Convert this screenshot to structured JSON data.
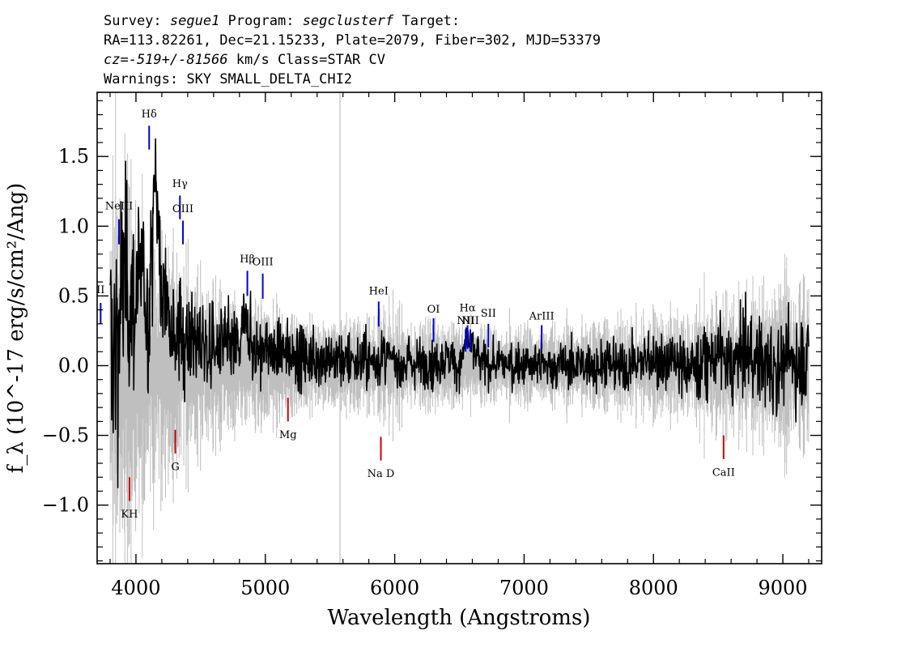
{
  "header": {
    "line1": {
      "survey_label": "Survey: ",
      "survey": "segue1",
      "program_label": " Program: ",
      "program": "segclusterf",
      "target_label": " Target:"
    },
    "line2": "RA=113.82261, Dec=21.15233, Plate=2079, Fiber=302, MJD=53379",
    "line3": {
      "cz": "cz=-519+/-81566",
      "rest": " km/s Class=STAR CV"
    },
    "line4": "Warnings: SKY SMALL_DELTA_CHI2"
  },
  "chart_data": {
    "type": "line",
    "xlabel": "Wavelength (Angstroms)",
    "ylabel": "f_λ (10^-17 erg/s/cm²/Ang)",
    "xlim": [
      3700,
      9300
    ],
    "ylim": [
      -1.42,
      1.96
    ],
    "x_ticks": [
      4000,
      5000,
      6000,
      7000,
      8000,
      9000
    ],
    "x_tick_labels": [
      "4000",
      "5000",
      "6000",
      "7000",
      "8000",
      "9000"
    ],
    "y_ticks": [
      -1.0,
      -0.5,
      0.0,
      0.5,
      1.0,
      1.5
    ],
    "y_tick_labels": [
      "−1.0",
      "−0.5",
      "0.0",
      "0.5",
      "1.0",
      "1.5"
    ],
    "series": [
      {
        "role": "error",
        "color": "#bfbfbf",
        "x": [
          3800,
          3900,
          4000,
          4100,
          4200,
          4300,
          4400,
          4500,
          4600,
          4700,
          4800,
          4900,
          5000,
          5100,
          5200,
          5300,
          5400,
          5500,
          5600,
          5700,
          5800,
          5900,
          6000,
          6200,
          6400,
          6600,
          6800,
          7000,
          7200,
          7400,
          7600,
          7800,
          8000,
          8200,
          8400,
          8600,
          8800,
          9000,
          9200
        ],
        "values": [
          0.9,
          0.8,
          0.6,
          0.5,
          0.45,
          0.4,
          0.36,
          0.33,
          0.3,
          0.28,
          0.26,
          0.25,
          0.24,
          0.22,
          0.21,
          0.2,
          0.2,
          0.19,
          0.19,
          0.2,
          0.2,
          0.2,
          0.19,
          0.17,
          0.16,
          0.15,
          0.15,
          0.15,
          0.16,
          0.17,
          0.18,
          0.19,
          0.2,
          0.21,
          0.23,
          0.25,
          0.3,
          0.3,
          0.35
        ]
      },
      {
        "role": "flux",
        "color": "#000000",
        "x": [
          3800,
          3850,
          3900,
          3950,
          4000,
          4050,
          4100,
          4150,
          4200,
          4250,
          4300,
          4350,
          4400,
          4450,
          4500,
          4600,
          4700,
          4800,
          4860,
          4900,
          5000,
          5100,
          5200,
          5300,
          5400,
          5500,
          5600,
          5700,
          5800,
          5900,
          6000,
          6100,
          6200,
          6300,
          6400,
          6500,
          6563,
          6600,
          6700,
          6800,
          6900,
          7000,
          7200,
          7400,
          7600,
          7800,
          8000,
          8200,
          8400,
          8500,
          8600,
          8700,
          8800,
          8900,
          9000,
          9100,
          9200
        ],
        "values": [
          0.1,
          0.2,
          0.6,
          0.5,
          0.45,
          0.6,
          0.35,
          1.45,
          0.4,
          0.55,
          0.25,
          0.2,
          0.25,
          0.18,
          0.15,
          0.12,
          0.15,
          0.12,
          0.4,
          0.1,
          0.12,
          0.08,
          0.1,
          0.05,
          0.06,
          0.05,
          0.05,
          0.04,
          0.02,
          0.05,
          0.03,
          0.02,
          0.03,
          0.0,
          0.05,
          0.0,
          0.2,
          0.1,
          0.0,
          0.0,
          0.02,
          0.0,
          0.0,
          0.0,
          0.0,
          0.0,
          0.05,
          0.0,
          0.0,
          0.1,
          0.0,
          0.1,
          0.05,
          0.0,
          0.0,
          0.05,
          0.0
        ]
      }
    ],
    "sky_line": {
      "x": 5577,
      "color": "#bfbfbf"
    },
    "line_markers": [
      {
        "label": "II",
        "x": 3727,
        "y0": 0.3,
        "y1": 0.45,
        "color": "#0000cc",
        "label_y": 0.52
      },
      {
        "label": "NeIII",
        "x": 3869,
        "y0": 0.87,
        "y1": 1.05,
        "color": "#0000cc",
        "label_y": 1.12
      },
      {
        "label": "Hδ",
        "x": 4102,
        "y0": 1.55,
        "y1": 1.72,
        "color": "#0000cc",
        "label_y": 1.78
      },
      {
        "label": "Hγ",
        "x": 4340,
        "y0": 1.05,
        "y1": 1.22,
        "color": "#0000cc",
        "label_y": 1.28
      },
      {
        "label": "OIII",
        "x": 4363,
        "y0": 0.87,
        "y1": 1.04,
        "color": "#0000cc",
        "label_y": 1.1
      },
      {
        "label": "Hβ",
        "x": 4861,
        "y0": 0.5,
        "y1": 0.68,
        "color": "#0000cc",
        "label_y": 0.74
      },
      {
        "label": "OIII",
        "x": 4980,
        "y0": 0.48,
        "y1": 0.66,
        "color": "#0000cc",
        "label_y": 0.72
      },
      {
        "label": "HeI",
        "x": 5876,
        "y0": 0.28,
        "y1": 0.46,
        "color": "#0000cc",
        "label_y": 0.51
      },
      {
        "label": "OI",
        "x": 6300,
        "y0": 0.17,
        "y1": 0.34,
        "color": "#0000cc",
        "label_y": 0.38
      },
      {
        "label": "NII",
        "x": 6548,
        "y0": 0.1,
        "y1": 0.26,
        "color": "#0000cc",
        "label_y": 0.3
      },
      {
        "label": "Hα",
        "x": 6563,
        "y0": 0.12,
        "y1": 0.29,
        "color": "#0000cc",
        "label_y": 0.39
      },
      {
        "label": "NII",
        "x": 6584,
        "y0": 0.1,
        "y1": 0.26,
        "color": "#0000cc",
        "label_y": 0.3
      },
      {
        "label": "SII",
        "x": 6724,
        "y0": 0.13,
        "y1": 0.3,
        "color": "#0000cc",
        "label_y": 0.35
      },
      {
        "label": "ArIII",
        "x": 7136,
        "y0": 0.12,
        "y1": 0.29,
        "color": "#0000cc",
        "label_y": 0.33
      },
      {
        "label": "KH",
        "x": 3950,
        "y0": -0.97,
        "y1": -0.8,
        "color": "#cc0000",
        "label_y": -1.09
      },
      {
        "label": "G",
        "x": 4304,
        "y0": -0.63,
        "y1": -0.46,
        "color": "#cc0000",
        "label_y": -0.75
      },
      {
        "label": "Mg",
        "x": 5175,
        "y0": -0.4,
        "y1": -0.23,
        "color": "#cc0000",
        "label_y": -0.52
      },
      {
        "label": "Na D",
        "x": 5893,
        "y0": -0.68,
        "y1": -0.51,
        "color": "#cc0000",
        "label_y": -0.8
      },
      {
        "label": "CaII",
        "x": 8542,
        "y0": -0.67,
        "y1": -0.5,
        "color": "#cc0000",
        "label_y": -0.79
      }
    ],
    "grid": false,
    "legend": "none"
  }
}
